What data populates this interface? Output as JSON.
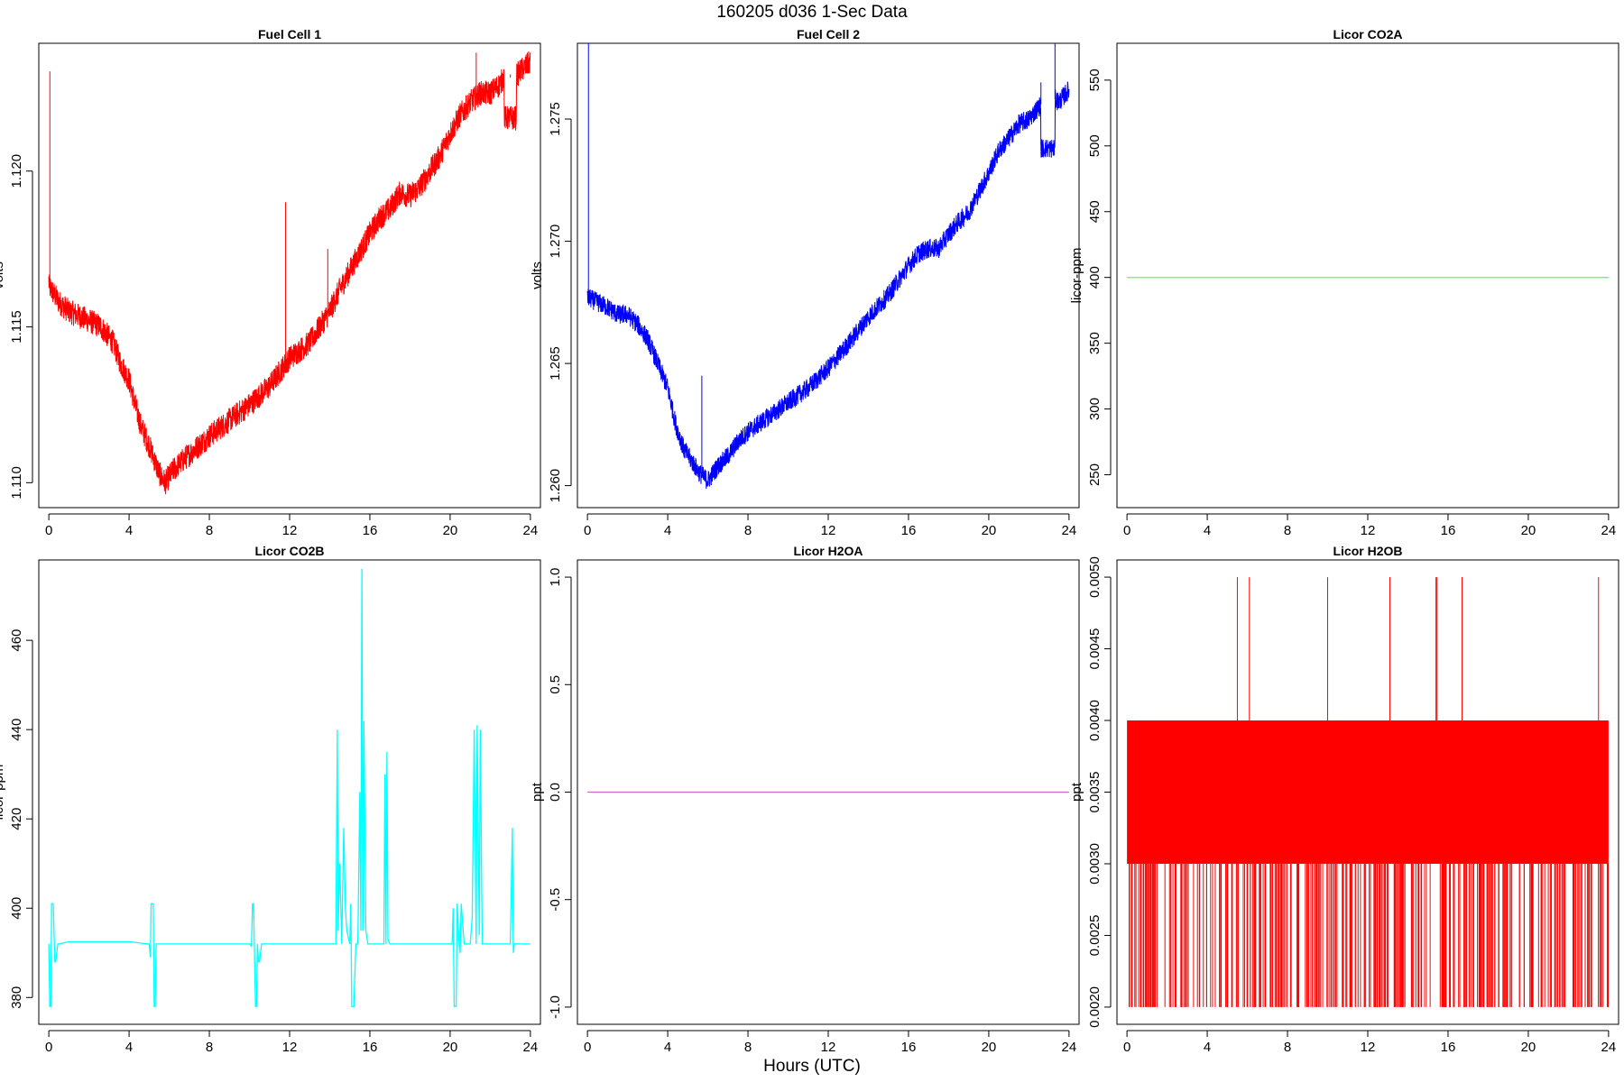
{
  "figure": {
    "title": "160205   d036   1-Sec Data",
    "xlabel": "Hours (UTC)"
  },
  "chart_data": [
    {
      "type": "line",
      "title": "Fuel Cell 1",
      "ylabel": "volts",
      "color": "#ff0000",
      "xlim": [
        -0.5,
        24.5
      ],
      "ylim": [
        1.1092,
        1.1241
      ],
      "xticks": [
        0,
        4,
        8,
        12,
        16,
        20,
        24
      ],
      "yticks": [
        "1.110",
        "1.115",
        "1.120"
      ],
      "band": 0.0004,
      "x": [
        0,
        0.02,
        0.5,
        1,
        2,
        2.6,
        3.2,
        3.6,
        4.0,
        4.3,
        4.6,
        5.0,
        5.5,
        5.8,
        6.2,
        6.8,
        7.5,
        8.0,
        9.0,
        10.0,
        11.0,
        12.0,
        13.0,
        14.0,
        14.5,
        15.0,
        15.5,
        16.0,
        16.5,
        17.0,
        17.5,
        18.0,
        18.5,
        19.0,
        19.5,
        20.0,
        20.5,
        21.0,
        21.5,
        22.0,
        22.5,
        22.8,
        23.2,
        23.5,
        24.0
      ],
      "y": [
        1.1165,
        1.1163,
        1.1158,
        1.1155,
        1.1152,
        1.115,
        1.1145,
        1.1138,
        1.1133,
        1.1125,
        1.1118,
        1.1112,
        1.1103,
        1.11,
        1.1104,
        1.1108,
        1.1112,
        1.1115,
        1.112,
        1.1125,
        1.1131,
        1.114,
        1.1145,
        1.1155,
        1.1162,
        1.1168,
        1.1174,
        1.118,
        1.1185,
        1.1188,
        1.1193,
        1.1192,
        1.1195,
        1.12,
        1.1205,
        1.1212,
        1.1218,
        1.1222,
        1.1225,
        1.1225,
        1.1228,
        1.1232,
        1.123,
        1.1232,
        1.1235
      ],
      "spikes": [
        [
          0.05,
          1.1232
        ],
        [
          11.8,
          1.119
        ],
        [
          13.9,
          1.1175
        ],
        [
          21.3,
          1.1238
        ],
        [
          23.0,
          1.123
        ]
      ],
      "step": {
        "x0": 22.7,
        "x1": 23.3,
        "y": 1.1217
      }
    },
    {
      "type": "line",
      "title": "Fuel Cell 2",
      "ylabel": "volts",
      "color": "#0000ff",
      "xlim": [
        -0.5,
        24.5
      ],
      "ylim": [
        1.2591,
        1.2781
      ],
      "xticks": [
        0,
        4,
        8,
        12,
        16,
        20,
        24
      ],
      "yticks": [
        "1.260",
        "1.265",
        "1.270",
        "1.275"
      ],
      "band": 0.0004,
      "x": [
        0,
        0.02,
        0.5,
        1,
        1.5,
        2.0,
        2.5,
        3.0,
        3.5,
        4.0,
        4.4,
        4.8,
        5.2,
        5.6,
        6.0,
        6.5,
        7.0,
        7.5,
        8.0,
        9.0,
        10.0,
        11.0,
        12.0,
        13.0,
        14.0,
        15.0,
        15.5,
        16.0,
        16.5,
        17.0,
        17.5,
        18.0,
        18.5,
        19.0,
        19.5,
        20.0,
        20.5,
        21.0,
        21.5,
        22.0,
        22.5,
        23.0,
        23.5,
        24.0
      ],
      "y": [
        1.268,
        1.2677,
        1.2675,
        1.2673,
        1.267,
        1.267,
        1.2666,
        1.266,
        1.265,
        1.264,
        1.2625,
        1.2615,
        1.261,
        1.2605,
        1.2602,
        1.2608,
        1.2612,
        1.2618,
        1.2622,
        1.2628,
        1.2634,
        1.264,
        1.2648,
        1.2658,
        1.2669,
        1.2678,
        1.2684,
        1.269,
        1.2695,
        1.2697,
        1.2697,
        1.2703,
        1.2708,
        1.2712,
        1.272,
        1.2728,
        1.2737,
        1.2742,
        1.2748,
        1.275,
        1.2755,
        1.276,
        1.2757,
        1.2762
      ],
      "spikes": [
        [
          0.05,
          1.2795
        ],
        [
          5.7,
          1.2645
        ],
        [
          18.8,
          1.271
        ],
        [
          22.6,
          1.2765
        ],
        [
          23.3,
          1.279
        ]
      ],
      "step": {
        "x0": 22.6,
        "x1": 23.3,
        "y": 1.2738
      }
    },
    {
      "type": "line",
      "title": "Licor CO2A",
      "ylabel": "licor-ppm",
      "color": "#66ff66",
      "xlim": [
        -0.5,
        24.5
      ],
      "ylim": [
        225,
        578
      ],
      "xticks": [
        0,
        4,
        8,
        12,
        16,
        20,
        24
      ],
      "yticks": [
        "250",
        "300",
        "350",
        "400",
        "450",
        "500",
        "550"
      ],
      "x": [
        0,
        24
      ],
      "y": [
        400,
        400
      ]
    },
    {
      "type": "line",
      "title": "Licor CO2B",
      "ylabel": "licor-ppm",
      "color": "#00ffff",
      "xlim": [
        -0.5,
        24.5
      ],
      "ylim": [
        374,
        478
      ],
      "xticks": [
        0,
        4,
        8,
        12,
        16,
        20,
        24
      ],
      "yticks": [
        "380",
        "400",
        "420",
        "440",
        "460"
      ],
      "x": [
        0,
        0.05,
        0.1,
        0.14,
        0.22,
        0.3,
        0.34,
        0.45,
        0.5,
        1.0,
        2.0,
        4.0,
        4.9,
        5.0,
        5.06,
        5.1,
        5.2,
        5.25,
        5.3,
        5.35,
        5.45,
        5.5,
        6.0,
        8.0,
        10.0,
        10.1,
        10.15,
        10.2,
        10.3,
        10.35,
        10.4,
        10.45,
        10.5,
        10.6,
        11.0,
        12.0,
        14.0,
        14.3,
        14.38,
        14.42,
        14.5,
        14.6,
        14.7,
        14.78,
        14.85,
        15.0,
        15.05,
        15.1,
        15.2,
        15.3,
        15.4,
        15.5,
        15.55,
        15.6,
        15.65,
        15.7,
        15.8,
        15.9,
        16.0,
        16.5,
        16.7,
        16.75,
        16.8,
        16.85,
        16.9,
        17.0,
        18.0,
        20.0,
        20.1,
        20.15,
        20.2,
        20.3,
        20.35,
        20.45,
        20.5,
        20.55,
        20.7,
        21.0,
        21.1,
        21.2,
        21.3,
        21.35,
        21.45,
        21.5,
        21.6,
        21.7,
        21.8,
        22.0,
        23.0,
        23.1,
        23.15,
        23.2,
        23.3,
        23.5,
        24.0
      ],
      "y": [
        392,
        378,
        378,
        401,
        401,
        388,
        388,
        392,
        392,
        392.5,
        392.5,
        392.5,
        392,
        392,
        389,
        401,
        401,
        378,
        378,
        392,
        392,
        392,
        392,
        392,
        392,
        391.5,
        401,
        401,
        378,
        378,
        392,
        388,
        388,
        392,
        392,
        392,
        392,
        392,
        440,
        395,
        410,
        392,
        418,
        400,
        395,
        392,
        401,
        378,
        378,
        392,
        392,
        426,
        395,
        476,
        395,
        442,
        395,
        392,
        392,
        392,
        392,
        430,
        392,
        435,
        393,
        392,
        392,
        392,
        392,
        400,
        378,
        378,
        401,
        392,
        390,
        401,
        392,
        392,
        398,
        440,
        392,
        441,
        394,
        440,
        392,
        392,
        392,
        392,
        392,
        418,
        390,
        392,
        392,
        392,
        392
      ]
    },
    {
      "type": "line",
      "title": "Licor H2OA",
      "ylabel": "ppt",
      "color": "#cc66cc",
      "xlim": [
        -0.5,
        24.5
      ],
      "ylim": [
        -1.08,
        1.08
      ],
      "xticks": [
        0,
        4,
        8,
        12,
        16,
        20,
        24
      ],
      "yticks": [
        "-1.0",
        "-0.5",
        "0.0",
        "0.5",
        "1.0"
      ],
      "x": [
        0,
        24
      ],
      "y": [
        0,
        0
      ]
    },
    {
      "type": "area",
      "title": "Licor H2OB",
      "ylabel": "ppt",
      "color": "#ff0000",
      "xlim": [
        -0.5,
        24.5
      ],
      "ylim": [
        0.00188,
        0.00512
      ],
      "xticks": [
        0,
        4,
        8,
        12,
        16,
        20,
        24
      ],
      "yticks": [
        "0.0020",
        "0.0025",
        "0.0030",
        "0.0035",
        "0.0040",
        "0.0045",
        "0.0050"
      ],
      "band_low": 0.003,
      "band_high": 0.004,
      "floor": 0.002,
      "spikes_x": [
        5.5,
        6.1,
        10.0,
        13.1,
        15.4,
        15.45,
        16.7,
        23.5
      ],
      "spike_top": 0.005,
      "x_range": [
        0,
        24
      ]
    }
  ]
}
